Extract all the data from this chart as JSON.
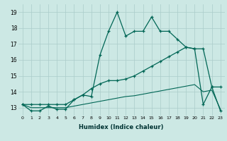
{
  "xlabel": "Humidex (Indice chaleur)",
  "ylabel": "",
  "background_color": "#cce8e4",
  "grid_color": "#aaccca",
  "line_color": "#006655",
  "xlim": [
    -0.5,
    23.5
  ],
  "ylim": [
    12.5,
    19.5
  ],
  "xticks": [
    0,
    1,
    2,
    3,
    4,
    5,
    6,
    7,
    8,
    9,
    10,
    11,
    12,
    13,
    14,
    15,
    16,
    17,
    18,
    19,
    20,
    21,
    22,
    23
  ],
  "yticks": [
    13,
    14,
    15,
    16,
    17,
    18,
    19
  ],
  "series1": [
    13.2,
    12.8,
    12.8,
    13.1,
    12.9,
    12.9,
    13.5,
    13.8,
    13.7,
    16.3,
    17.8,
    19.0,
    17.5,
    17.8,
    17.8,
    18.7,
    17.8,
    17.8,
    17.3,
    16.8,
    16.7,
    13.2,
    14.3,
    12.8
  ],
  "series2": [
    13.2,
    13.2,
    13.2,
    13.2,
    13.2,
    13.2,
    13.5,
    13.8,
    14.2,
    14.5,
    14.7,
    14.7,
    14.8,
    15.0,
    15.3,
    15.6,
    15.9,
    16.2,
    16.5,
    16.8,
    16.7,
    16.7,
    14.3,
    14.3
  ],
  "series3": [
    13.2,
    13.0,
    13.0,
    13.0,
    13.0,
    13.0,
    13.1,
    13.2,
    13.3,
    13.4,
    13.5,
    13.6,
    13.7,
    13.75,
    13.85,
    13.95,
    14.05,
    14.15,
    14.25,
    14.35,
    14.45,
    14.0,
    14.1,
    12.9
  ]
}
